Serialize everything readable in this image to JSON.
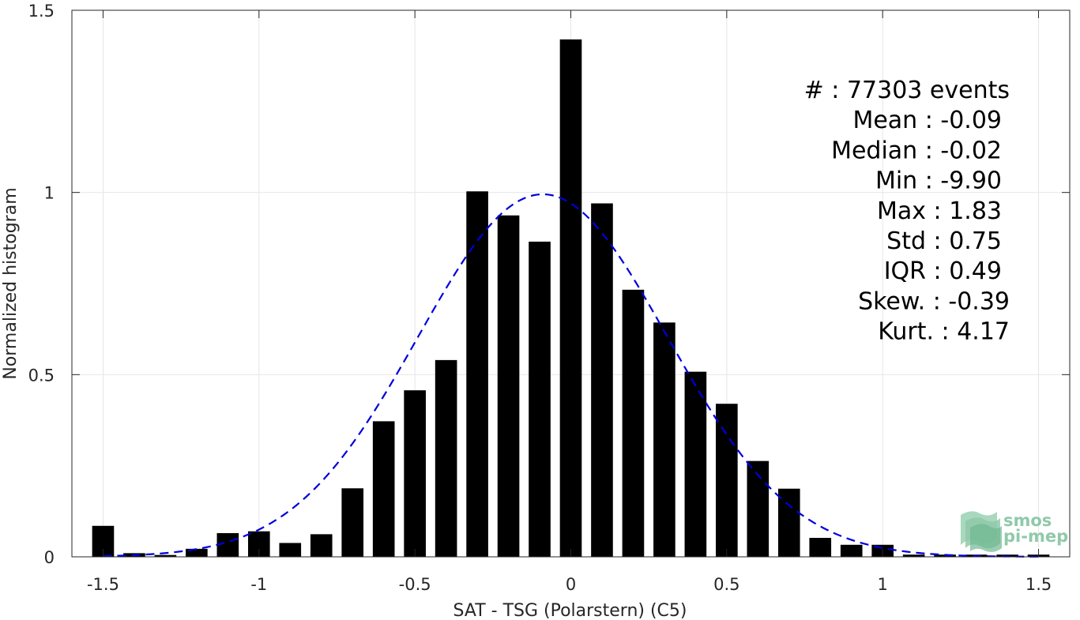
{
  "chart_data": {
    "type": "bar",
    "title": "",
    "xlabel": "SAT - TSG (Polarstern) (C5)",
    "ylabel": "Normalized histogram",
    "xlim": [
      -1.6,
      1.6
    ],
    "ylim": [
      0,
      1.5
    ],
    "xticks": [
      -1.5,
      -1,
      -0.5,
      0,
      0.5,
      1,
      1.5
    ],
    "xtick_labels": [
      "-1.5",
      "-1",
      "-0.5",
      "0",
      "0.5",
      "1",
      "1.5"
    ],
    "yticks": [
      0,
      0.5,
      1,
      1.5
    ],
    "ytick_labels": [
      "0",
      "0.5",
      "1",
      "1.5"
    ],
    "grid": true,
    "bar_color": "#000000",
    "bin_width": 0.1,
    "x": [
      -1.5,
      -1.4,
      -1.3,
      -1.2,
      -1.1,
      -1.0,
      -0.9,
      -0.8,
      -0.7,
      -0.6,
      -0.5,
      -0.4,
      -0.3,
      -0.2,
      -0.1,
      0.0,
      0.1,
      0.2,
      0.3,
      0.4,
      0.5,
      0.6,
      0.7,
      0.8,
      0.9,
      1.0,
      1.1,
      1.2,
      1.3,
      1.4,
      1.5
    ],
    "values": [
      0.085,
      0.01,
      0.005,
      0.022,
      0.065,
      0.07,
      0.038,
      0.062,
      0.188,
      0.372,
      0.457,
      0.54,
      1.003,
      0.937,
      0.865,
      1.42,
      0.97,
      0.733,
      0.643,
      0.508,
      0.42,
      0.263,
      0.187,
      0.052,
      0.033,
      0.033,
      0.006,
      0.006,
      0.006,
      0.006,
      0.006
    ],
    "fit_curve": {
      "type": "gaussian",
      "mean": -0.09,
      "std": 0.4,
      "peak": 0.995,
      "color": "#0000dd",
      "style": "dashed"
    },
    "annotations": [
      "#  : 77303 events",
      "Mean : -0.09",
      "Median : -0.02",
      "Min : -9.90",
      "Max : 1.83",
      "Std : 0.75",
      "IQR : 0.49",
      "Skew. : -0.39",
      "Kurt. : 4.17"
    ],
    "logo": {
      "line1": "smos",
      "line2": "pi-mep",
      "color": "#8fc9a9"
    }
  }
}
